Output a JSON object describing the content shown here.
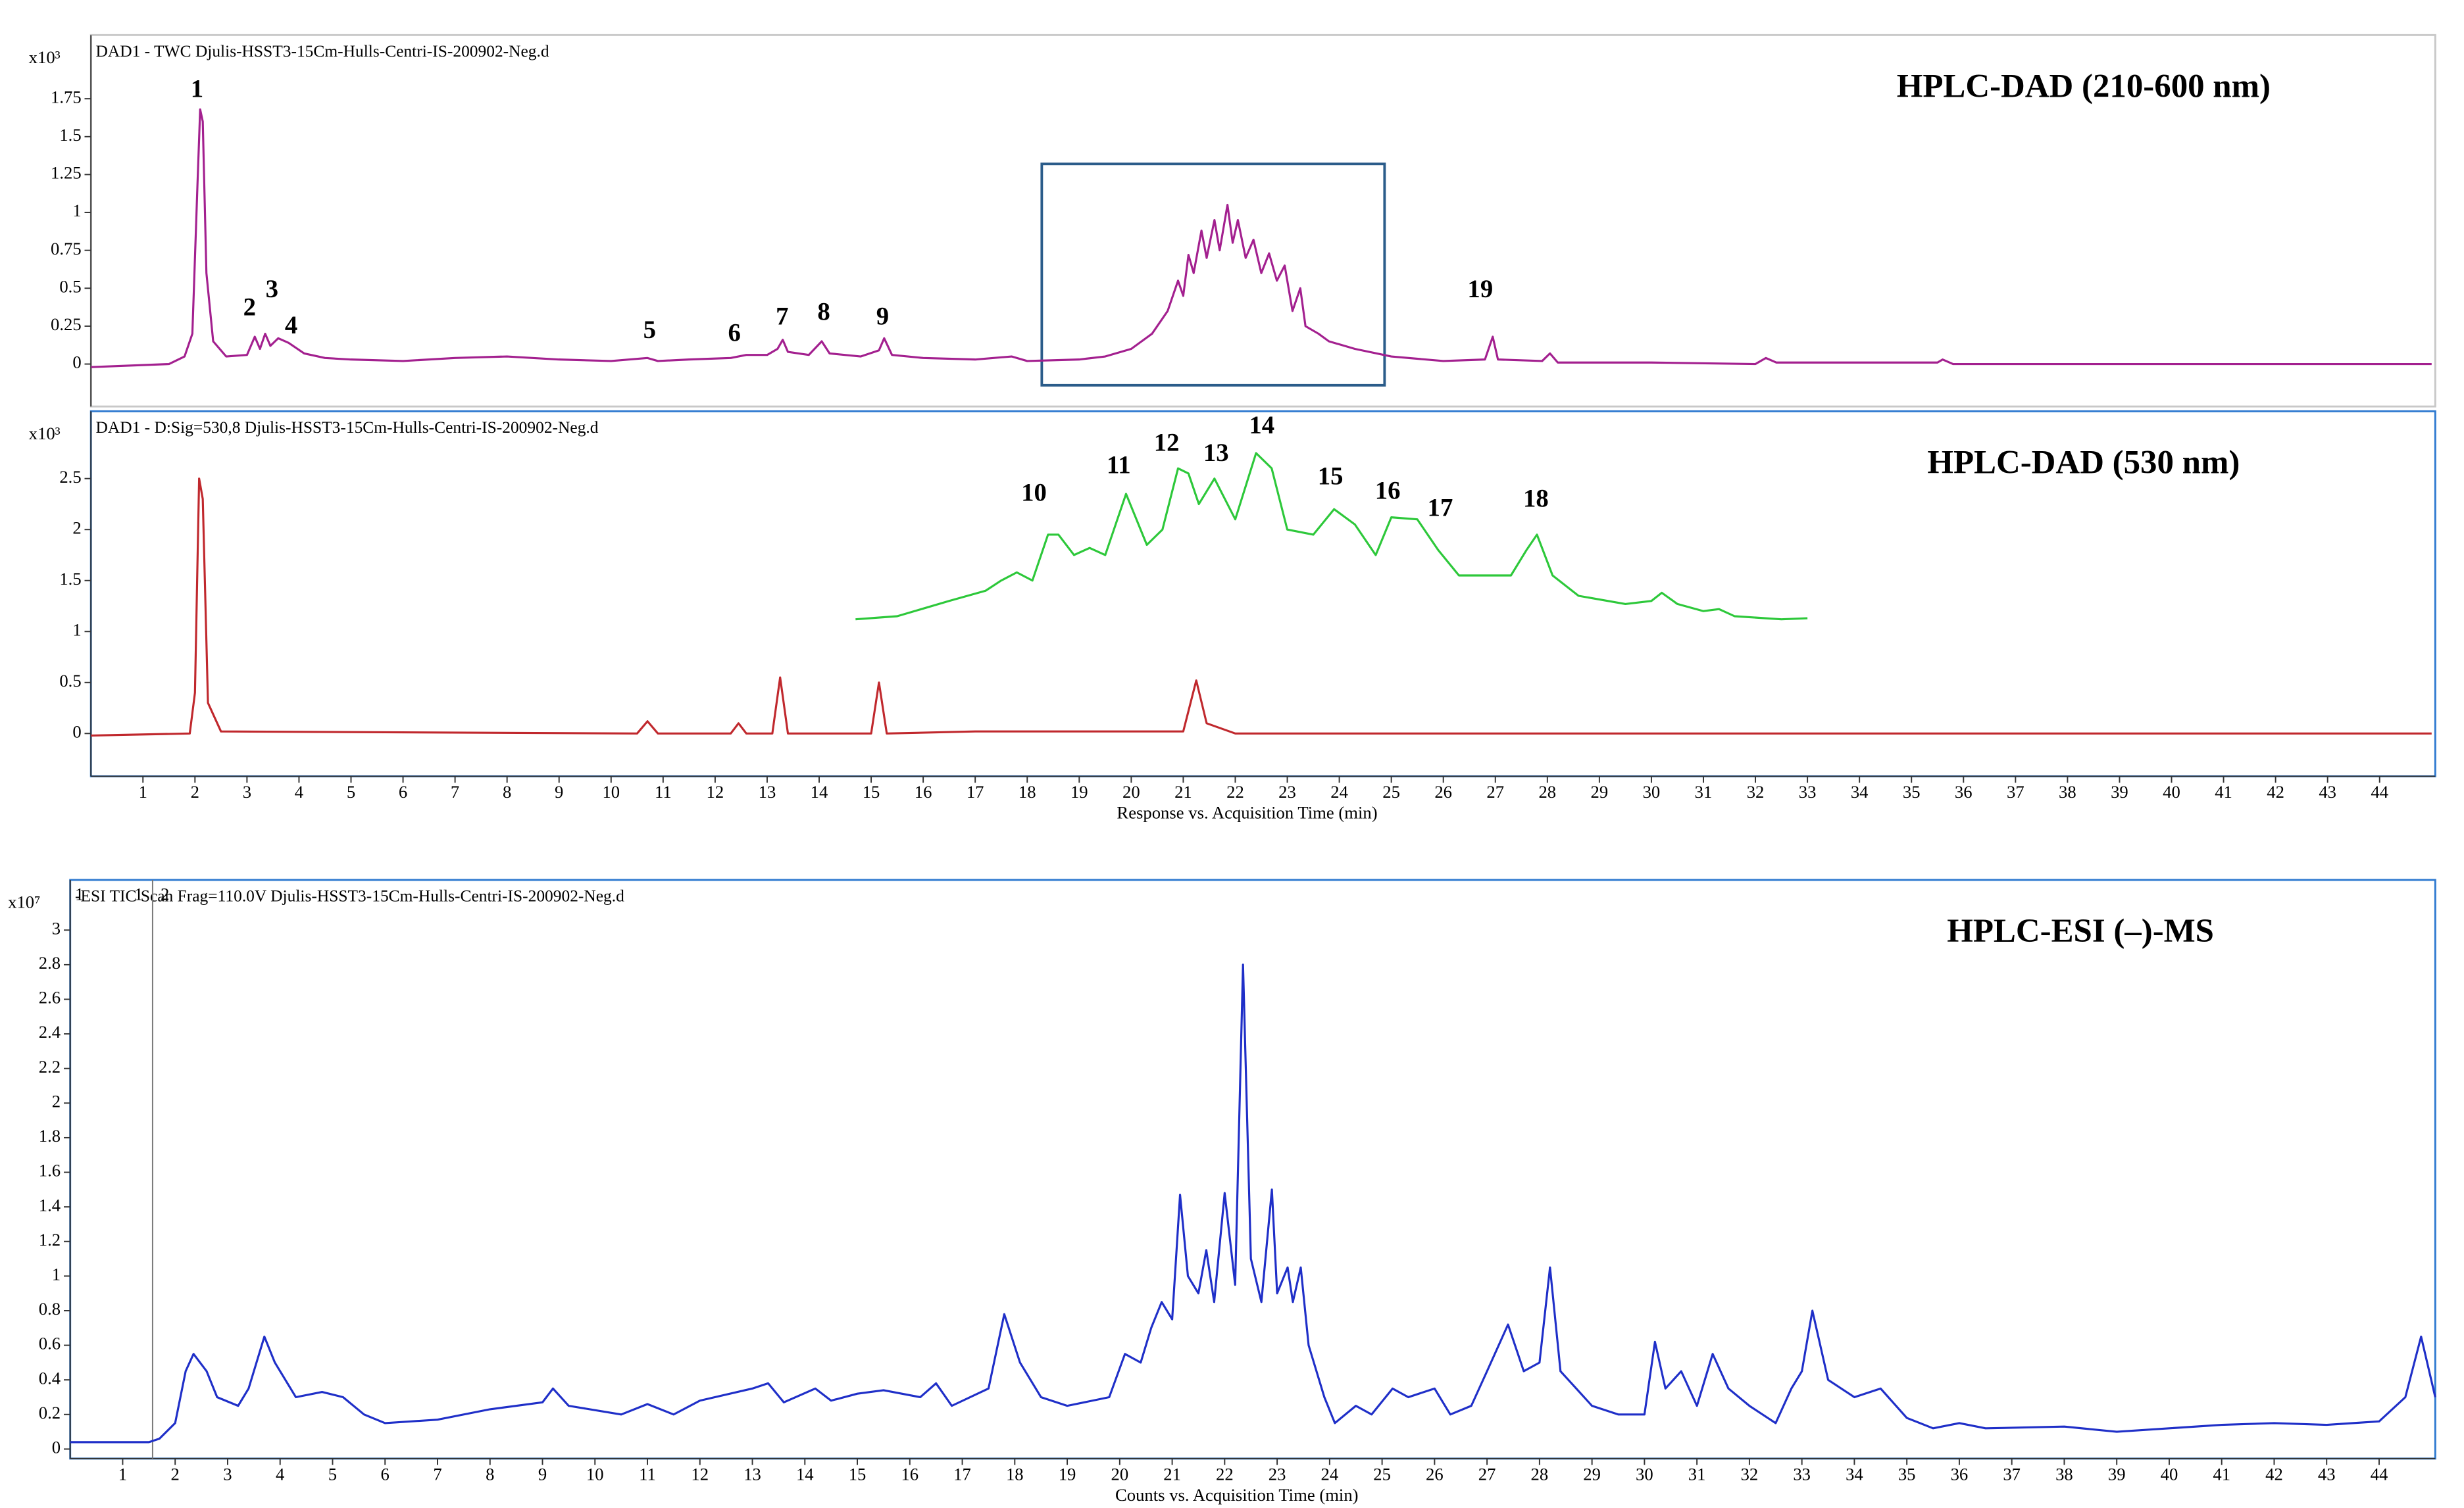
{
  "chart_data": [
    {
      "type": "line",
      "title": "HPLC-DAD (210-600 nm)",
      "subtitle": "DAD1 - TWC Djulis-HSST3-15Cm-Hulls-Centri-IS-200902-Neg.d",
      "y_multiplier": "x10³",
      "frame_color": "#c8c8c8",
      "xlim": [
        0,
        45.07
      ],
      "ylim": [
        -0.28,
        2.17
      ],
      "yticks": [
        0,
        0.25,
        0.5,
        0.75,
        1,
        1.25,
        1.5,
        1.75
      ],
      "highlight": {
        "x": [
          18.28,
          24.87
        ],
        "y": [
          -0.14,
          1.32
        ],
        "color": "#2b5c8a"
      },
      "series": [
        {
          "color": "#a3208f",
          "x": [
            0,
            1.5,
            1.8,
            1.95,
            2.05,
            2.1,
            2.15,
            2.22,
            2.35,
            2.6,
            3.0,
            3.15,
            3.25,
            3.35,
            3.45,
            3.6,
            3.8,
            4.1,
            4.5,
            5,
            6,
            7,
            8,
            9,
            10,
            10.7,
            10.9,
            11.5,
            12.3,
            12.6,
            13,
            13.2,
            13.3,
            13.4,
            13.8,
            14.05,
            14.2,
            14.8,
            15.15,
            15.25,
            15.4,
            16,
            17,
            17.7,
            18,
            19,
            19.5,
            20,
            20.4,
            20.7,
            20.9,
            21.0,
            21.1,
            21.2,
            21.35,
            21.45,
            21.6,
            21.7,
            21.85,
            21.95,
            22.05,
            22.2,
            22.35,
            22.5,
            22.65,
            22.8,
            22.95,
            23.1,
            23.25,
            23.35,
            23.6,
            23.8,
            24.3,
            25,
            26,
            26.8,
            26.95,
            27.05,
            27.9,
            28.05,
            28.2,
            30,
            32,
            32.2,
            32.4,
            35.5,
            35.6,
            35.8,
            40,
            45
          ],
          "values": [
            -0.02,
            0.0,
            0.05,
            0.2,
            1.2,
            1.68,
            1.6,
            0.6,
            0.15,
            0.05,
            0.06,
            0.18,
            0.1,
            0.2,
            0.12,
            0.17,
            0.14,
            0.07,
            0.04,
            0.03,
            0.02,
            0.04,
            0.05,
            0.03,
            0.02,
            0.04,
            0.02,
            0.03,
            0.04,
            0.06,
            0.06,
            0.1,
            0.16,
            0.08,
            0.06,
            0.15,
            0.07,
            0.05,
            0.09,
            0.17,
            0.06,
            0.04,
            0.03,
            0.05,
            0.02,
            0.03,
            0.05,
            0.1,
            0.2,
            0.35,
            0.55,
            0.45,
            0.72,
            0.6,
            0.88,
            0.7,
            0.95,
            0.75,
            1.05,
            0.8,
            0.95,
            0.7,
            0.82,
            0.6,
            0.73,
            0.55,
            0.65,
            0.35,
            0.5,
            0.25,
            0.2,
            0.15,
            0.1,
            0.05,
            0.02,
            0.03,
            0.18,
            0.03,
            0.02,
            0.07,
            0.01,
            0.01,
            0.0,
            0.04,
            0.01,
            0.01,
            0.03,
            0.0,
            0.0,
            0.0
          ]
        }
      ],
      "annotations": [
        {
          "text": "1",
          "x": 2.04,
          "y": 1.8
        },
        {
          "text": "2",
          "x": 3.05,
          "y": 0.36
        },
        {
          "text": "3",
          "x": 3.48,
          "y": 0.48
        },
        {
          "text": "4",
          "x": 3.85,
          "y": 0.24
        },
        {
          "text": "5",
          "x": 10.74,
          "y": 0.21
        },
        {
          "text": "6",
          "x": 12.37,
          "y": 0.19
        },
        {
          "text": "7",
          "x": 13.29,
          "y": 0.3
        },
        {
          "text": "8",
          "x": 14.09,
          "y": 0.33
        },
        {
          "text": "9",
          "x": 15.22,
          "y": 0.3
        },
        {
          "text": "19",
          "x": 26.71,
          "y": 0.48
        }
      ]
    },
    {
      "type": "line",
      "title": "HPLC-DAD (530 nm)",
      "subtitle": "DAD1 - D:Sig=530,8 Djulis-HSST3-15Cm-Hulls-Centri-IS-200902-Neg.d",
      "y_multiplier": "x10³",
      "xlabel": "Response vs. Acquisition Time (min)",
      "frame_color": "#2f7ad0",
      "xlim": [
        0,
        45.07
      ],
      "ylim": [
        -0.42,
        3.16
      ],
      "yticks": [
        0,
        0.5,
        1,
        1.5,
        2,
        2.5
      ],
      "xticks": [
        1,
        2,
        3,
        4,
        5,
        6,
        7,
        8,
        9,
        10,
        11,
        12,
        13,
        14,
        15,
        16,
        17,
        18,
        19,
        20,
        21,
        22,
        23,
        24,
        25,
        26,
        27,
        28,
        29,
        30,
        31,
        32,
        33,
        34,
        35,
        36,
        37,
        38,
        39,
        40,
        41,
        42,
        43,
        44
      ],
      "series": [
        {
          "color": "#c0282d",
          "x": [
            0,
            1.9,
            2.0,
            2.08,
            2.15,
            2.25,
            2.5,
            10.5,
            10.7,
            10.9,
            12.3,
            12.45,
            12.6,
            13.1,
            13.25,
            13.4,
            15.0,
            15.15,
            15.3,
            17,
            21,
            21.25,
            21.45,
            22,
            45
          ],
          "values": [
            -0.02,
            0.0,
            0.4,
            2.5,
            2.3,
            0.3,
            0.02,
            0.0,
            0.12,
            0.0,
            0.0,
            0.1,
            0.0,
            0.0,
            0.55,
            0.0,
            0.0,
            0.5,
            0.0,
            0.02,
            0.02,
            0.52,
            0.1,
            0.0,
            0.0
          ]
        },
        {
          "color": "#2dc83a",
          "x": [
            14.7,
            15.5,
            16.5,
            17.2,
            17.5,
            17.8,
            18.1,
            18.4,
            18.6,
            18.9,
            19.2,
            19.5,
            19.9,
            20.3,
            20.6,
            20.9,
            21.1,
            21.3,
            21.6,
            22.0,
            22.4,
            22.7,
            23.0,
            23.5,
            23.9,
            24.3,
            24.7,
            25.0,
            25.5,
            25.9,
            26.3,
            26.8,
            27.3,
            27.6,
            27.8,
            28.1,
            28.6,
            29.5,
            30.0,
            30.2,
            30.5,
            31.0,
            31.3,
            31.6,
            32.5,
            33.0
          ],
          "values": [
            1.12,
            1.15,
            1.3,
            1.4,
            1.5,
            1.58,
            1.5,
            1.95,
            1.95,
            1.75,
            1.82,
            1.75,
            2.35,
            1.85,
            2.0,
            2.6,
            2.55,
            2.25,
            2.5,
            2.1,
            2.75,
            2.6,
            2.0,
            1.95,
            2.2,
            2.05,
            1.75,
            2.12,
            2.1,
            1.8,
            1.55,
            1.55,
            1.55,
            1.8,
            1.95,
            1.55,
            1.35,
            1.27,
            1.3,
            1.38,
            1.27,
            1.2,
            1.22,
            1.15,
            1.12,
            1.13
          ]
        }
      ],
      "annotations": [
        {
          "text": "10",
          "x": 18.13,
          "y": 2.34
        },
        {
          "text": "11",
          "x": 19.76,
          "y": 2.61
        },
        {
          "text": "12",
          "x": 20.68,
          "y": 2.83
        },
        {
          "text": "13",
          "x": 21.63,
          "y": 2.73
        },
        {
          "text": "14",
          "x": 22.51,
          "y": 3.0
        },
        {
          "text": "15",
          "x": 23.83,
          "y": 2.5
        },
        {
          "text": "16",
          "x": 24.93,
          "y": 2.36
        },
        {
          "text": "17",
          "x": 25.94,
          "y": 2.19
        },
        {
          "text": "18",
          "x": 27.78,
          "y": 2.28
        }
      ]
    },
    {
      "type": "line",
      "title": "HPLC-ESI (–)-MS",
      "subtitle": "-ESI TIC Scan Frag=110.0V Djulis-HSST3-15Cm-Hulls-Centri-IS-200902-Neg.d",
      "y_multiplier": "x10⁷",
      "xlabel": "Counts vs. Acquisition Time (min)",
      "frame_color": "#2f7ad0",
      "xlim": [
        0,
        45.07
      ],
      "ylim": [
        -0.055,
        3.29
      ],
      "yticks": [
        0,
        0.2,
        0.4,
        0.6,
        0.8,
        1,
        1.2,
        1.4,
        1.6,
        1.8,
        2,
        2.2,
        2.4,
        2.6,
        2.8,
        3
      ],
      "xticks": [
        1,
        2,
        3,
        4,
        5,
        6,
        7,
        8,
        9,
        10,
        11,
        12,
        13,
        14,
        15,
        16,
        17,
        18,
        19,
        20,
        21,
        22,
        23,
        24,
        25,
        26,
        27,
        28,
        29,
        30,
        31,
        32,
        33,
        34,
        35,
        36,
        37,
        38,
        39,
        40,
        41,
        42,
        43,
        44
      ],
      "cursor": {
        "x": 1.57,
        "labels": [
          "1",
          "1",
          "2"
        ]
      },
      "series": [
        {
          "color": "#1f2fc8",
          "x": [
            0,
            1.5,
            1.7,
            2.0,
            2.2,
            2.35,
            2.6,
            2.8,
            3.2,
            3.4,
            3.7,
            3.9,
            4.3,
            4.8,
            5.2,
            5.6,
            6,
            7,
            8,
            9,
            9.2,
            9.5,
            10.5,
            11,
            11.5,
            12,
            13,
            13.3,
            13.6,
            14.2,
            14.5,
            15,
            15.5,
            16.2,
            16.5,
            16.8,
            17.5,
            17.8,
            18.1,
            18.5,
            19,
            19.8,
            20.1,
            20.4,
            20.6,
            20.8,
            21.0,
            21.15,
            21.3,
            21.5,
            21.65,
            21.8,
            22.0,
            22.2,
            22.35,
            22.5,
            22.7,
            22.9,
            23.0,
            23.2,
            23.3,
            23.45,
            23.6,
            23.9,
            24.1,
            24.5,
            24.8,
            25.2,
            25.5,
            26,
            26.3,
            26.7,
            27.0,
            27.4,
            27.7,
            28.0,
            28.2,
            28.4,
            28.7,
            29,
            29.5,
            30.0,
            30.2,
            30.4,
            30.7,
            31,
            31.3,
            31.6,
            32,
            32.5,
            32.8,
            33.0,
            33.2,
            33.5,
            34,
            34.5,
            35,
            35.5,
            36,
            36.5,
            38,
            39,
            40,
            41,
            42,
            43,
            44,
            44.5,
            44.8,
            45.07
          ],
          "values": [
            0.04,
            0.04,
            0.06,
            0.15,
            0.45,
            0.55,
            0.45,
            0.3,
            0.25,
            0.35,
            0.65,
            0.5,
            0.3,
            0.33,
            0.3,
            0.2,
            0.15,
            0.17,
            0.23,
            0.27,
            0.35,
            0.25,
            0.2,
            0.26,
            0.2,
            0.28,
            0.35,
            0.38,
            0.27,
            0.35,
            0.28,
            0.32,
            0.34,
            0.3,
            0.38,
            0.25,
            0.35,
            0.78,
            0.5,
            0.3,
            0.25,
            0.3,
            0.55,
            0.5,
            0.7,
            0.85,
            0.75,
            1.47,
            1.0,
            0.9,
            1.15,
            0.85,
            1.48,
            0.95,
            2.8,
            1.1,
            0.85,
            1.5,
            0.9,
            1.05,
            0.85,
            1.05,
            0.6,
            0.3,
            0.15,
            0.25,
            0.2,
            0.35,
            0.3,
            0.35,
            0.2,
            0.25,
            0.45,
            0.72,
            0.45,
            0.5,
            1.05,
            0.45,
            0.35,
            0.25,
            0.2,
            0.2,
            0.62,
            0.35,
            0.45,
            0.25,
            0.55,
            0.35,
            0.25,
            0.15,
            0.35,
            0.45,
            0.8,
            0.4,
            0.3,
            0.35,
            0.18,
            0.12,
            0.15,
            0.12,
            0.13,
            0.1,
            0.12,
            0.14,
            0.15,
            0.14,
            0.16,
            0.3,
            0.65,
            0.3
          ]
        }
      ]
    }
  ]
}
